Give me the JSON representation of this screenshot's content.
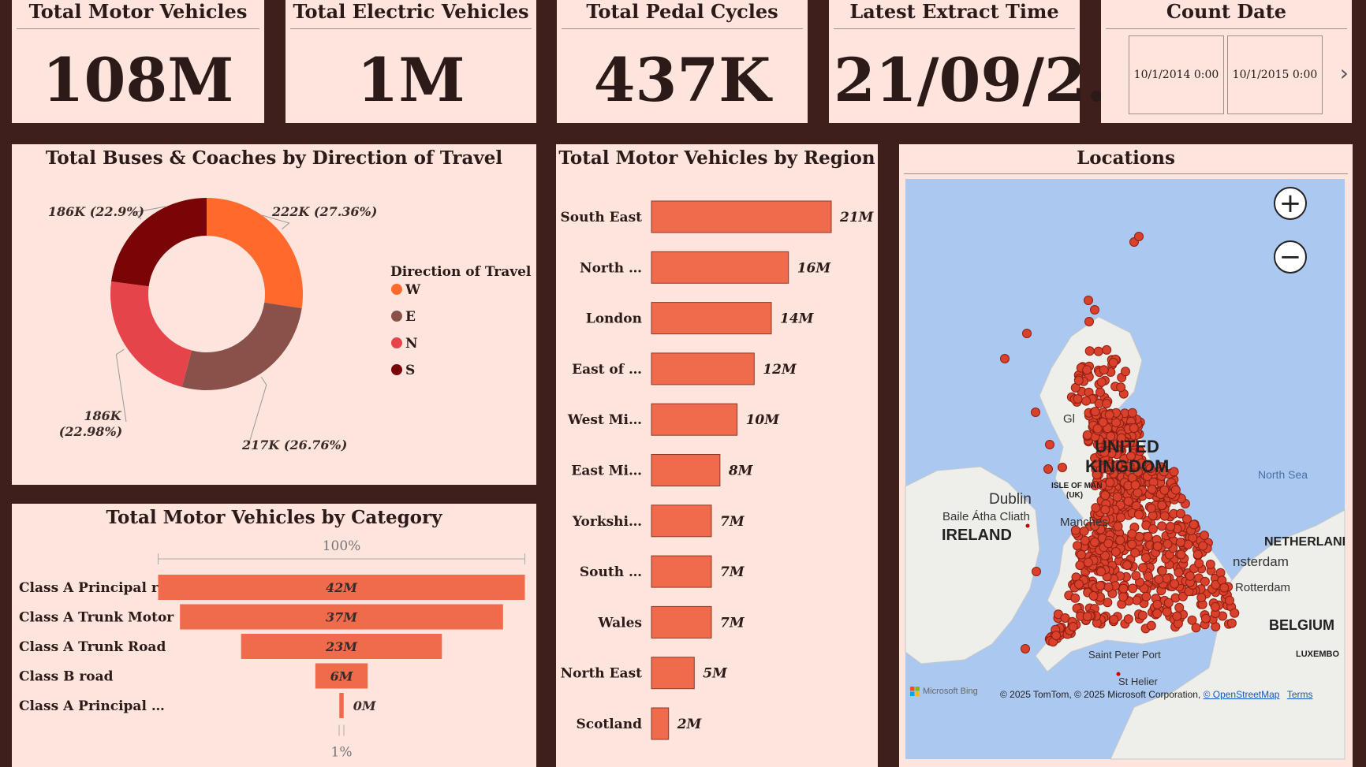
{
  "kpis": {
    "motor_vehicles": {
      "title": "Total Motor Vehicles",
      "value": "108M"
    },
    "electric_vehicles": {
      "title": "Total Electric Vehicles",
      "value": "1M"
    },
    "pedal_cycles": {
      "title": "Total Pedal Cycles",
      "value": "437K"
    },
    "extract_time": {
      "title": "Latest Extract Time",
      "value": "21/09/2…"
    }
  },
  "count_date": {
    "title": "Count Date",
    "options": [
      "10/1/2014 0:00",
      "10/1/2015 0:00"
    ],
    "next_icon": "chevron-right-icon"
  },
  "donut": {
    "title": "Total Buses & Coaches by Direction of Travel",
    "legend_title": "Direction of Travel",
    "chart_data": {
      "type": "pie",
      "subtype": "donut",
      "title": "Total Buses & Coaches by Direction of Travel",
      "legend_title": "Direction of Travel",
      "legend_position": "right",
      "slices": [
        {
          "name": "W",
          "value": 222000,
          "percent": 27.36,
          "label": "222K (27.36%)",
          "color": "#ff6a2c"
        },
        {
          "name": "E",
          "value": 217000,
          "percent": 26.76,
          "label": "217K (26.76%)",
          "color": "#8a514a"
        },
        {
          "name": "N",
          "value": 186000,
          "percent": 22.98,
          "label_line1": "186K",
          "label_line2": "(22.98%)",
          "color": "#e5454a"
        },
        {
          "name": "S",
          "value": 186000,
          "percent": 22.9,
          "label": "186K (22.9%)",
          "color": "#7a0506"
        }
      ]
    }
  },
  "category": {
    "title": "Total Motor Vehicles by Category",
    "top_label": "100%",
    "bottom_label": "1%",
    "chart_data": {
      "type": "bar",
      "subtype": "funnel",
      "title": "Total Motor Vehicles by Category",
      "categories": [
        "Class A Principal r…",
        "Class A Trunk Motor",
        "Class A Trunk Road",
        "Class B road",
        "Class A Principal …"
      ],
      "values": [
        42,
        37,
        23,
        6,
        0.5
      ],
      "value_labels": [
        "42M",
        "37M",
        "23M",
        "6M",
        "0M"
      ],
      "unit": "M",
      "color": "#f06b4c"
    }
  },
  "region": {
    "title": "Total Motor Vehicles by Region",
    "chart_data": {
      "type": "bar",
      "orientation": "horizontal",
      "title": "Total Motor Vehicles by Region",
      "categories": [
        "South East",
        "North …",
        "London",
        "East of …",
        "West Mi…",
        "East Mi…",
        "Yorkshi…",
        "South …",
        "Wales",
        "North East",
        "Scotland"
      ],
      "values": [
        21,
        16,
        14,
        12,
        10,
        8,
        7,
        7,
        7,
        5,
        2
      ],
      "value_labels": [
        "21M",
        "16M",
        "14M",
        "12M",
        "10M",
        "8M",
        "7M",
        "7M",
        "7M",
        "5M",
        "2M"
      ],
      "unit": "M",
      "color": "#f06b4c"
    }
  },
  "map": {
    "title": "Locations",
    "labels": {
      "uk1": "UNITED",
      "uk2": "KINGDOM",
      "ireland": "IRELAND",
      "dublin": "Dublin",
      "baile": "Baile Átha Cliath",
      "isle1": "ISLE OF MAN",
      "isle2": "(UK)",
      "manchester": "Manches",
      "north_sea": "North Sea",
      "netherlands": "NETHERLANI",
      "amsterdam": "nsterdam",
      "rotterdam": "Rotterdam",
      "belgium": "BELGIUM",
      "luxembourg": "LUXEMBO",
      "saint_peter": "Saint Peter Port",
      "st_helier": "St Helier",
      "glasgow": "Gl"
    },
    "brand": "Microsoft Bing",
    "credits_prefix": "© 2025 TomTom, © 2025 Microsoft Corporation, ",
    "credits_link": "© OpenStreetMap",
    "terms": "Terms",
    "zoom_in_icon": "plus-icon",
    "zoom_out_icon": "minus-icon",
    "marker_color": "#d9412c",
    "water_color": "#aac8f0",
    "land_color": "#eeeeea"
  }
}
